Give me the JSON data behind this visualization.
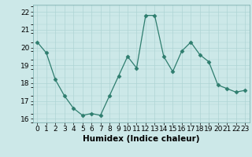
{
  "x": [
    0,
    1,
    2,
    3,
    4,
    5,
    6,
    7,
    8,
    9,
    10,
    11,
    12,
    13,
    14,
    15,
    16,
    17,
    18,
    19,
    20,
    21,
    22,
    23
  ],
  "y": [
    20.3,
    19.7,
    18.2,
    17.3,
    16.6,
    16.2,
    16.3,
    16.2,
    17.3,
    18.4,
    19.5,
    18.85,
    21.8,
    21.8,
    19.5,
    18.65,
    19.8,
    20.3,
    19.6,
    19.2,
    17.9,
    17.7,
    17.5,
    17.6
  ],
  "line_color": "#2e7d6e",
  "marker": "D",
  "marker_size": 2.5,
  "bg_color": "#cce8e8",
  "grid_color": "#afd4d4",
  "xlabel": "Humidex (Indice chaleur)",
  "xlim": [
    -0.5,
    23.5
  ],
  "ylim": [
    15.8,
    22.4
  ],
  "yticks": [
    16,
    17,
    18,
    19,
    20,
    21,
    22
  ],
  "xticks": [
    0,
    1,
    2,
    3,
    4,
    5,
    6,
    7,
    8,
    9,
    10,
    11,
    12,
    13,
    14,
    15,
    16,
    17,
    18,
    19,
    20,
    21,
    22,
    23
  ],
  "xlabel_fontsize": 7.5,
  "tick_fontsize": 6.5
}
